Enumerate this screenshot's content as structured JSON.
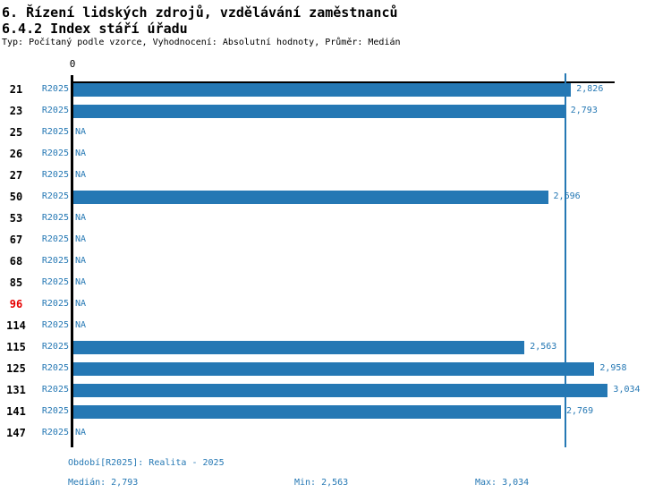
{
  "colors": {
    "bar": "#2578b4",
    "text_blue": "#2578b4",
    "id_black": "#000000",
    "id_red": "#e60000"
  },
  "chart_data": {
    "type": "bar",
    "orientation": "horizontal",
    "title": "6. Řízení lidských zdrojů, vzdělávání zaměstnanců",
    "subtitle": "6.4.2 Index stáří úřadu",
    "meta": "Typ: Počítaný podle vzorce, Vyhodnocení: Absolutní hodnoty, Průměr: Medián",
    "series_label": "R2025",
    "x_axis": {
      "origin_label": "0",
      "min": 0,
      "max_visible": 3.07,
      "grid": false
    },
    "median_ref_line": 2.793,
    "categories": [
      "21",
      "23",
      "25",
      "26",
      "27",
      "50",
      "53",
      "67",
      "68",
      "85",
      "96",
      "114",
      "115",
      "125",
      "131",
      "141",
      "147"
    ],
    "values": [
      2.826,
      2.793,
      null,
      null,
      null,
      2.696,
      null,
      null,
      null,
      null,
      null,
      null,
      2.563,
      2.958,
      3.034,
      2.769,
      null
    ],
    "rows": [
      {
        "id": "21",
        "period": "R2025",
        "value": 2.826,
        "value_label": "2,826",
        "highlight_red": false
      },
      {
        "id": "23",
        "period": "R2025",
        "value": 2.793,
        "value_label": "2,793",
        "highlight_red": false
      },
      {
        "id": "25",
        "period": "R2025",
        "value": null,
        "value_label": "NA",
        "highlight_red": false
      },
      {
        "id": "26",
        "period": "R2025",
        "value": null,
        "value_label": "NA",
        "highlight_red": false
      },
      {
        "id": "27",
        "period": "R2025",
        "value": null,
        "value_label": "NA",
        "highlight_red": false
      },
      {
        "id": "50",
        "period": "R2025",
        "value": 2.696,
        "value_label": "2,696",
        "highlight_red": false
      },
      {
        "id": "53",
        "period": "R2025",
        "value": null,
        "value_label": "NA",
        "highlight_red": false
      },
      {
        "id": "67",
        "period": "R2025",
        "value": null,
        "value_label": "NA",
        "highlight_red": false
      },
      {
        "id": "68",
        "period": "R2025",
        "value": null,
        "value_label": "NA",
        "highlight_red": false
      },
      {
        "id": "85",
        "period": "R2025",
        "value": null,
        "value_label": "NA",
        "highlight_red": false
      },
      {
        "id": "96",
        "period": "R2025",
        "value": null,
        "value_label": "NA",
        "highlight_red": true
      },
      {
        "id": "114",
        "period": "R2025",
        "value": null,
        "value_label": "NA",
        "highlight_red": false
      },
      {
        "id": "115",
        "period": "R2025",
        "value": 2.563,
        "value_label": "2,563",
        "highlight_red": false
      },
      {
        "id": "125",
        "period": "R2025",
        "value": 2.958,
        "value_label": "2,958",
        "highlight_red": false
      },
      {
        "id": "131",
        "period": "R2025",
        "value": 3.034,
        "value_label": "3,034",
        "highlight_red": false
      },
      {
        "id": "141",
        "period": "R2025",
        "value": 2.769,
        "value_label": "2,769",
        "highlight_red": false
      },
      {
        "id": "147",
        "period": "R2025",
        "value": null,
        "value_label": "NA",
        "highlight_red": false
      }
    ],
    "footer": {
      "period": "Období[R2025]: Realita - 2025",
      "median": "Medián: 2,793",
      "min": "Min: 2,563",
      "max": "Max: 3,034"
    }
  }
}
